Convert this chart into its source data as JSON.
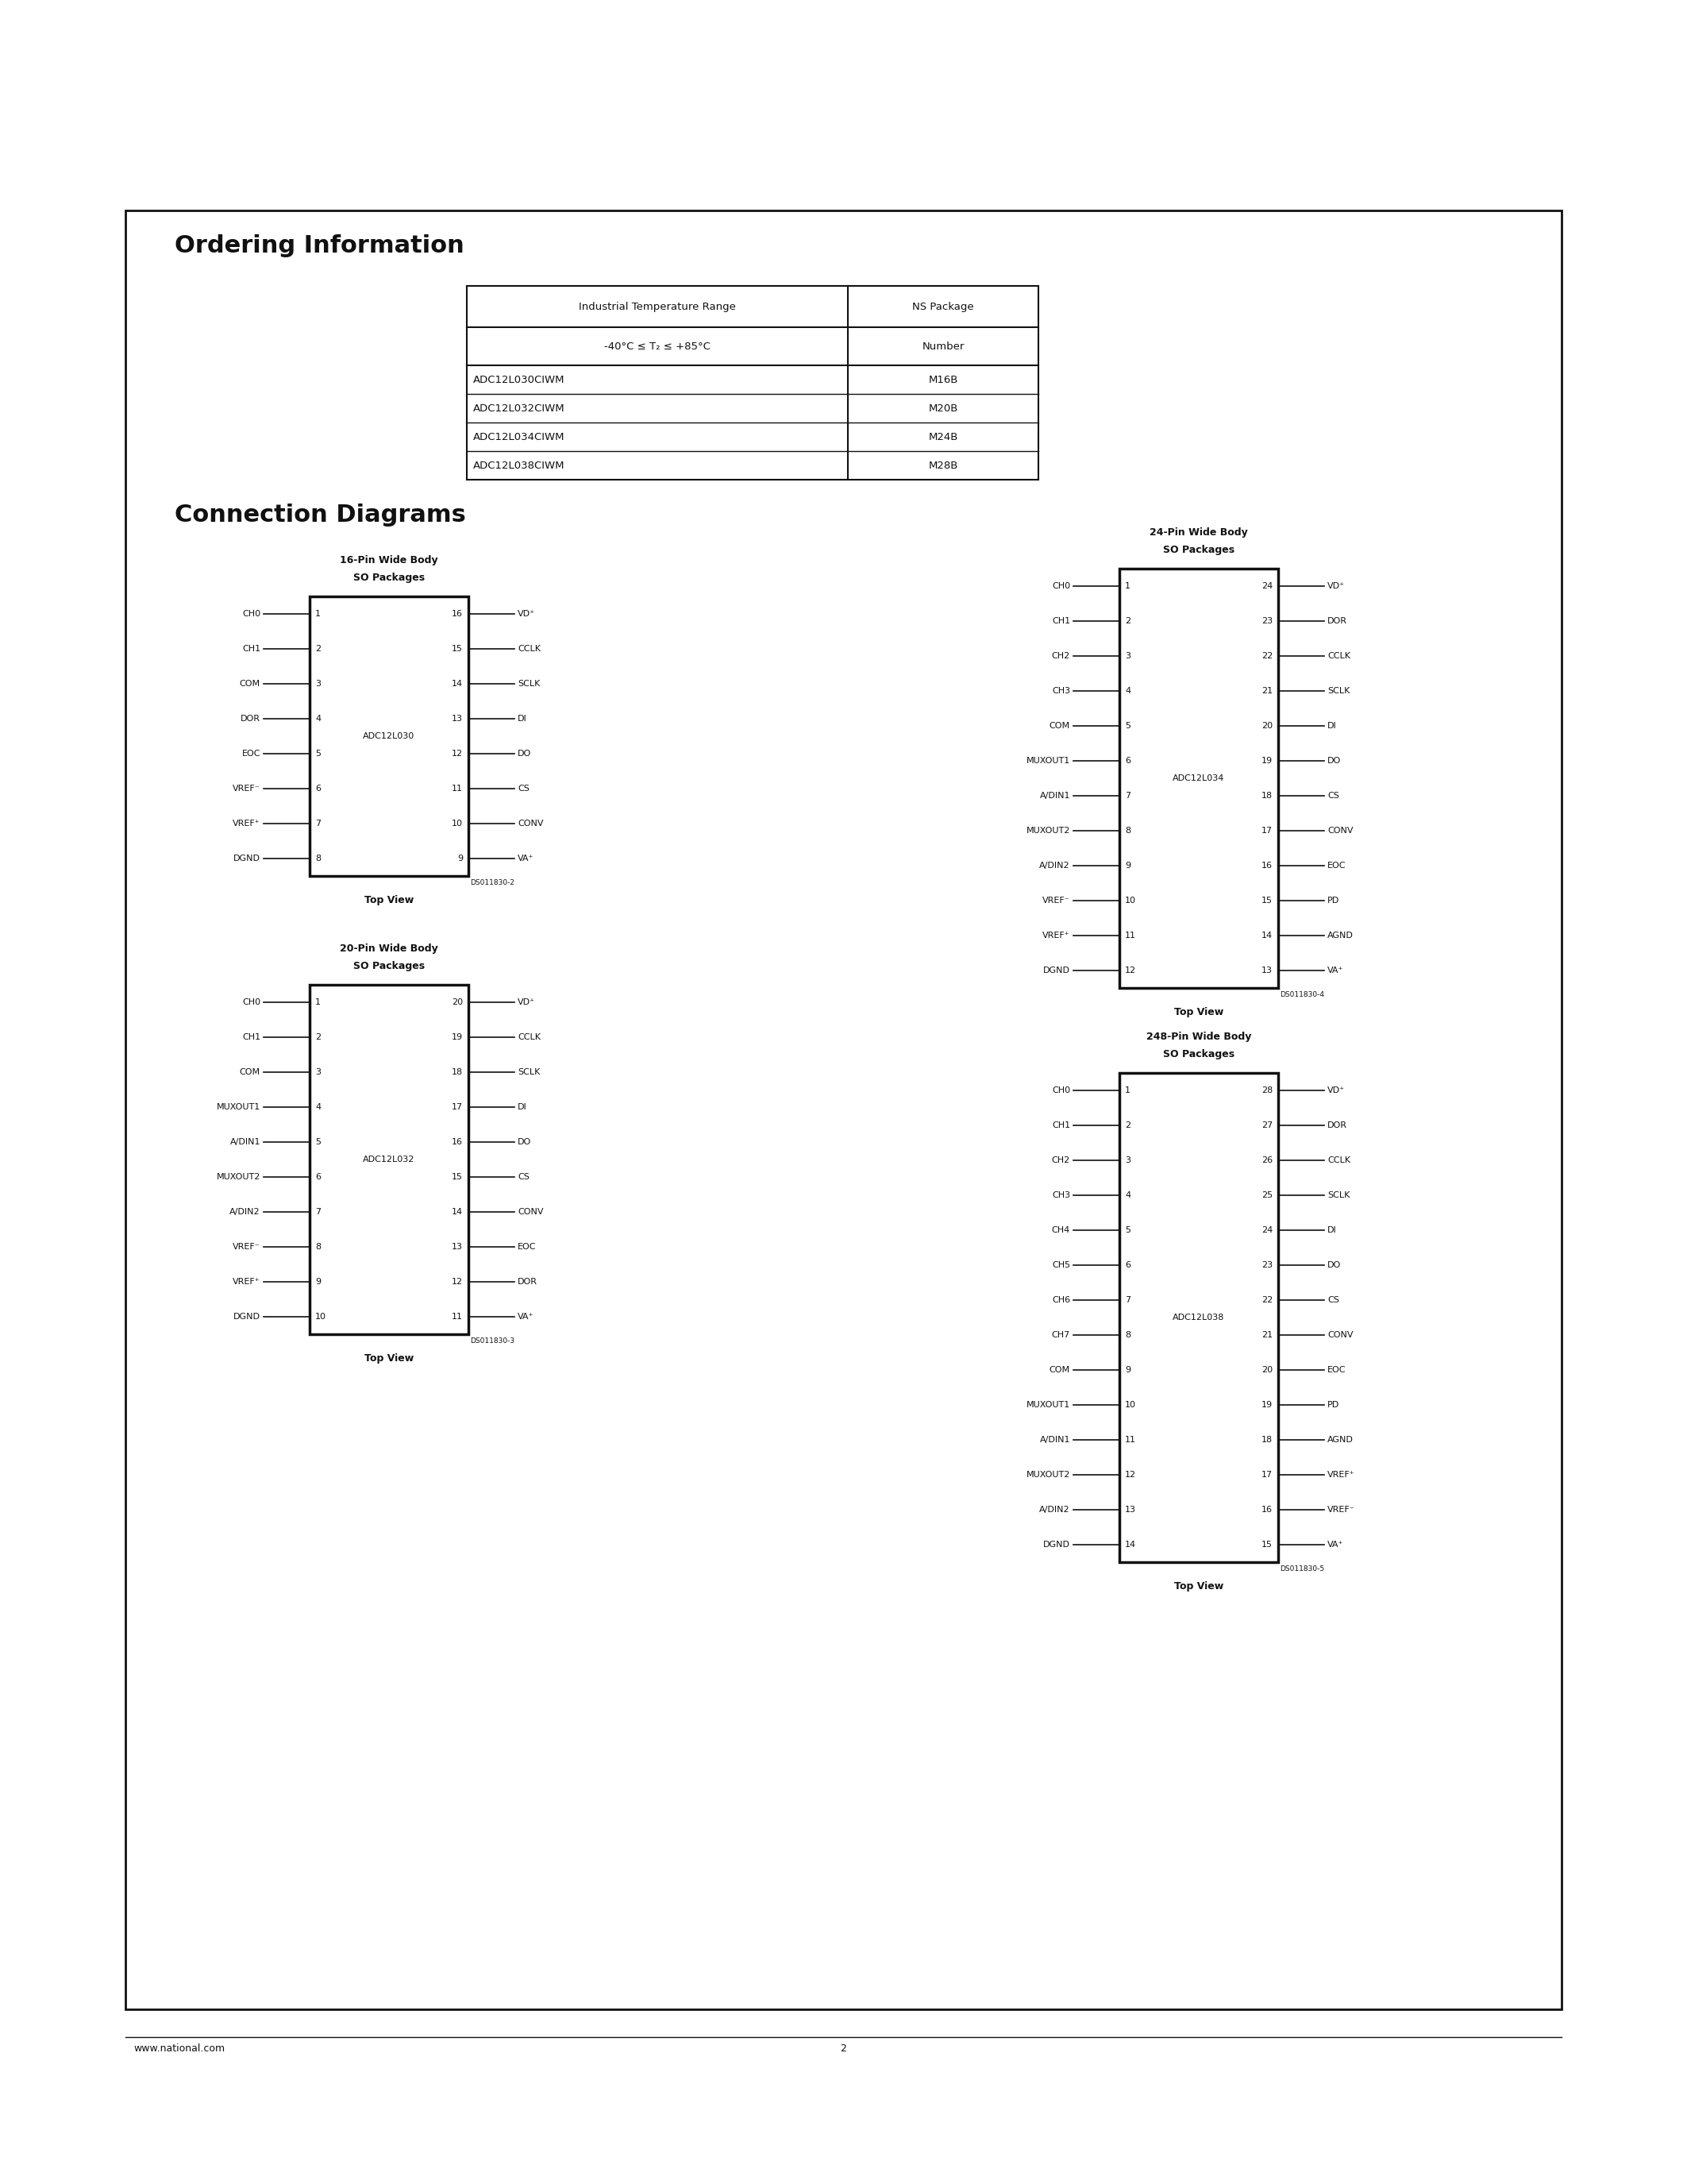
{
  "page_bg": "#ffffff",
  "border_color": "#111111",
  "text_color": "#111111",
  "ordering_title": "Ordering Information",
  "connection_title": "Connection Diagrams",
  "table_col1_header": "Industrial Temperature Range",
  "table_col2_header": "NS Package",
  "table_col1_sub": "-40°C ≤ T_A ≤ +85°C",
  "table_col2_sub": "Number",
  "table_rows": [
    [
      "ADC12L030CIWM",
      "M16B"
    ],
    [
      "ADC12L032CIWM",
      "M20B"
    ],
    [
      "ADC12L034CIWM",
      "M24B"
    ],
    [
      "ADC12L038CIWM",
      "M28B"
    ]
  ],
  "footer_left": "www.national.com",
  "footer_page": "2",
  "ds_nums": {
    "ADC12L030": "DS011830-2",
    "ADC12L032": "DS011830-3",
    "ADC12L034": "DS011830-4",
    "ADC12L038": "DS011830-5"
  }
}
